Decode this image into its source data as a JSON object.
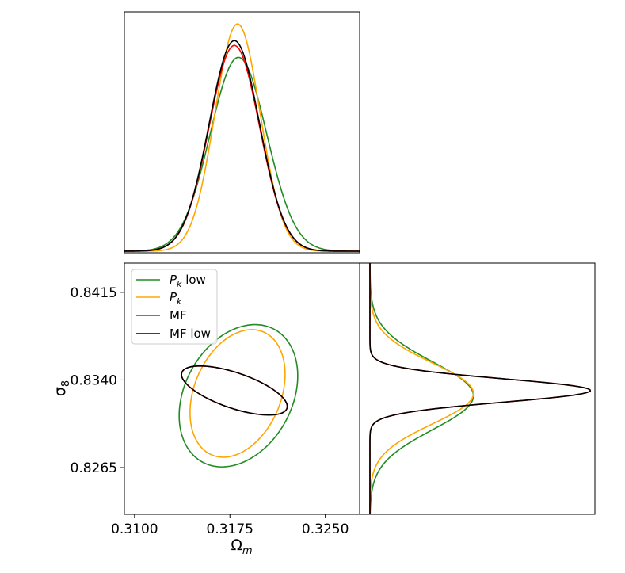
{
  "chart_data": {
    "type": "corner",
    "parameters": [
      "Ω_m",
      "σ_8"
    ],
    "xlabel": {
      "main": "Ω",
      "sub": "m"
    },
    "ylabel": {
      "main": "σ",
      "sub": "8"
    },
    "x_ticks": [
      "0.3100",
      "0.3175",
      "0.3250"
    ],
    "x_tick_values": [
      0.31,
      0.3175,
      0.325
    ],
    "y_ticks": [
      "0.8415",
      "0.8340",
      "0.8265"
    ],
    "y_tick_values": [
      0.8415,
      0.834,
      0.8265
    ],
    "xlim": [
      0.3092,
      0.3277
    ],
    "ylim": [
      0.8225,
      0.844
    ],
    "legend": {
      "placement": "upper-left",
      "entries": [
        {
          "main": "P",
          "sub": "k",
          "suffix": " low"
        },
        {
          "main": "P",
          "sub": "k",
          "suffix": ""
        },
        {
          "main": "MF",
          "sub": "",
          "suffix": ""
        },
        {
          "main": "MF low",
          "sub": "",
          "suffix": ""
        }
      ]
    },
    "series": [
      {
        "name": "P_k low",
        "color": "#228b22",
        "mean": [
          0.31817,
          0.83265
        ],
        "sigma": [
          0.00222,
          0.0029
        ],
        "rho": 0.28,
        "peak": 0.81
      },
      {
        "name": "P_k",
        "color": "#ffa500",
        "mean": [
          0.3181,
          0.83285
        ],
        "sigma": [
          0.00178,
          0.0026
        ],
        "rho": 0.3,
        "peak": 0.95
      },
      {
        "name": "MF",
        "color": "#ff0000",
        "mean": [
          0.31785,
          0.8331
        ],
        "sigma": [
          0.00198,
          0.001
        ],
        "rho": -0.65,
        "peak": 0.86
      },
      {
        "name": "MF low",
        "color": "#000000",
        "mean": [
          0.31785,
          0.8331
        ],
        "sigma": [
          0.00198,
          0.001
        ],
        "rho": -0.65,
        "peak": 0.88
      }
    ],
    "marginal_x": {
      "xlim": [
        0.3092,
        0.3277
      ],
      "grid": false
    },
    "marginal_y": {
      "ylim": [
        0.8225,
        0.844
      ],
      "grid": false
    }
  }
}
